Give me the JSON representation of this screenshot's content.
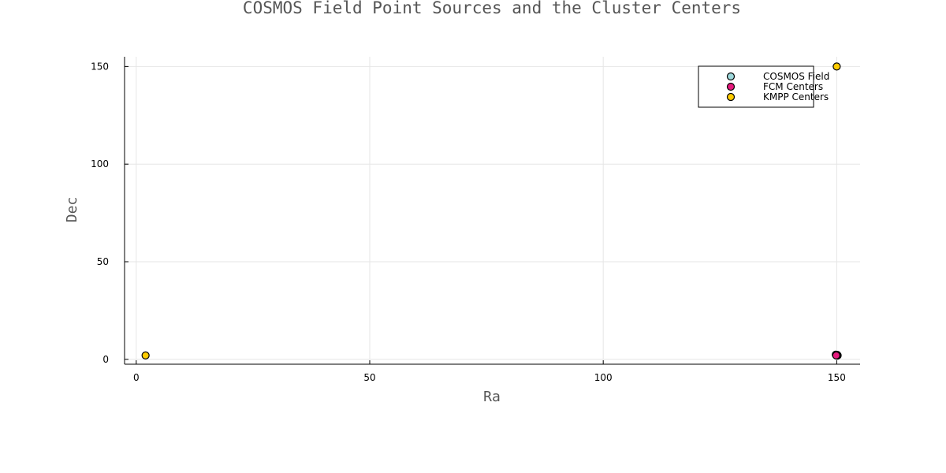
{
  "chart_data": {
    "type": "scatter",
    "title": "COSMOS Field Point Sources and the Cluster Centers",
    "xlabel": "Ra",
    "ylabel": "Dec",
    "xlim": [
      -2.5,
      155
    ],
    "ylim": [
      -2.5,
      155
    ],
    "xticks": [
      0,
      50,
      100,
      150
    ],
    "yticks": [
      0,
      50,
      100,
      150
    ],
    "grid": true,
    "legend_position": "top-right",
    "series": [
      {
        "name": "COSMOS Field",
        "color": "#9ed8db",
        "points": [
          [
            149.9,
            2.1
          ],
          [
            150.1,
            2.3
          ],
          [
            150.0,
            2.2
          ],
          [
            150.2,
            2.0
          ],
          [
            149.8,
            2.4
          ],
          [
            150.1,
            1.9
          ]
        ]
      },
      {
        "name": "FCM Centers",
        "color": "#e6197d",
        "points": [
          [
            150.0,
            2.2
          ],
          [
            149.9,
            2.0
          ]
        ]
      },
      {
        "name": "KMPP Centers",
        "color": "#ffcc00",
        "points": [
          [
            150.0,
            150.0
          ],
          [
            2.0,
            2.0
          ]
        ]
      }
    ]
  }
}
